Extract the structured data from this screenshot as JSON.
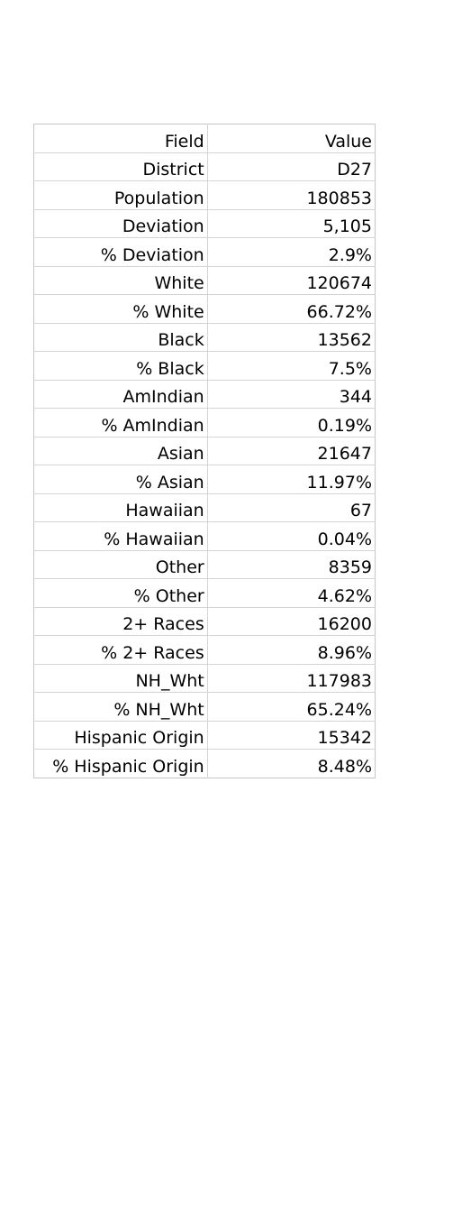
{
  "table": {
    "headers": [
      "Field",
      "Value"
    ],
    "rows": [
      [
        "District",
        "D27"
      ],
      [
        "Population",
        "180853"
      ],
      [
        "Deviation",
        "5,105"
      ],
      [
        "% Deviation",
        "2.9%"
      ],
      [
        "White",
        "120674"
      ],
      [
        "% White",
        "66.72%"
      ],
      [
        "Black",
        "13562"
      ],
      [
        "% Black",
        "7.5%"
      ],
      [
        "AmIndian",
        "344"
      ],
      [
        "% AmIndian",
        "0.19%"
      ],
      [
        "Asian",
        "21647"
      ],
      [
        "% Asian",
        "11.97%"
      ],
      [
        "Hawaiian",
        "67"
      ],
      [
        "% Hawaiian",
        "0.04%"
      ],
      [
        "Other",
        "8359"
      ],
      [
        "% Other",
        "4.62%"
      ],
      [
        "2+ Races",
        "16200"
      ],
      [
        "% 2+ Races",
        "8.96%"
      ],
      [
        "NH_Wht",
        "117983"
      ],
      [
        "% NH_Wht",
        "65.24%"
      ],
      [
        "Hispanic Origin",
        "15342"
      ],
      [
        "% Hispanic Origin",
        "8.48%"
      ]
    ]
  }
}
